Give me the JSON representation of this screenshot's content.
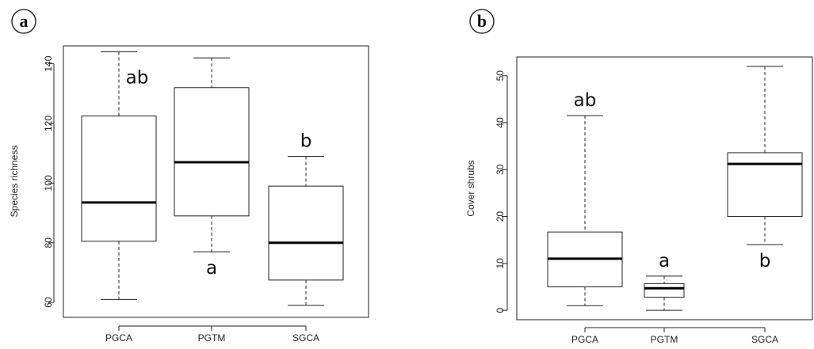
{
  "chart_data": [
    {
      "type": "box",
      "panel_label": "a",
      "ylabel": "Species richness",
      "xlabel": "",
      "ylim": [
        55,
        146
      ],
      "yticks": [
        60,
        80,
        100,
        120,
        140
      ],
      "grid": false,
      "categories": [
        "PGCA",
        "PGTM",
        "SGCA"
      ],
      "boxes": [
        {
          "category": "PGCA",
          "min": 61,
          "q1": 80.5,
          "median": 93.5,
          "q3": 122.5,
          "max": 144,
          "letter": "ab",
          "letter_position": "above-right"
        },
        {
          "category": "PGTM",
          "min": 77,
          "q1": 89,
          "median": 107,
          "q3": 132,
          "max": 142,
          "letter": "a",
          "letter_position": "below"
        },
        {
          "category": "SGCA",
          "min": 59,
          "q1": 67.5,
          "median": 80,
          "q3": 99,
          "max": 109,
          "letter": "b",
          "letter_position": "above"
        }
      ]
    },
    {
      "type": "box",
      "panel_label": "b",
      "ylabel": "Cover shrubs",
      "xlabel": "",
      "ylim": [
        -2,
        54
      ],
      "yticks": [
        0,
        10,
        20,
        30,
        40,
        50
      ],
      "grid": false,
      "categories": [
        "PGCA",
        "PGTM",
        "SGCA"
      ],
      "boxes": [
        {
          "category": "PGCA",
          "min": 1,
          "q1": 5,
          "median": 11,
          "q3": 16.7,
          "max": 41.5,
          "letter": "ab",
          "letter_position": "above"
        },
        {
          "category": "PGTM",
          "min": 0,
          "q1": 2.8,
          "median": 4.7,
          "q3": 5.7,
          "max": 7.3,
          "letter": "a",
          "letter_position": "above"
        },
        {
          "category": "SGCA",
          "min": 14,
          "q1": 20,
          "median": 31.2,
          "q3": 33.6,
          "max": 52,
          "letter": "b",
          "letter_position": "below"
        }
      ]
    }
  ]
}
